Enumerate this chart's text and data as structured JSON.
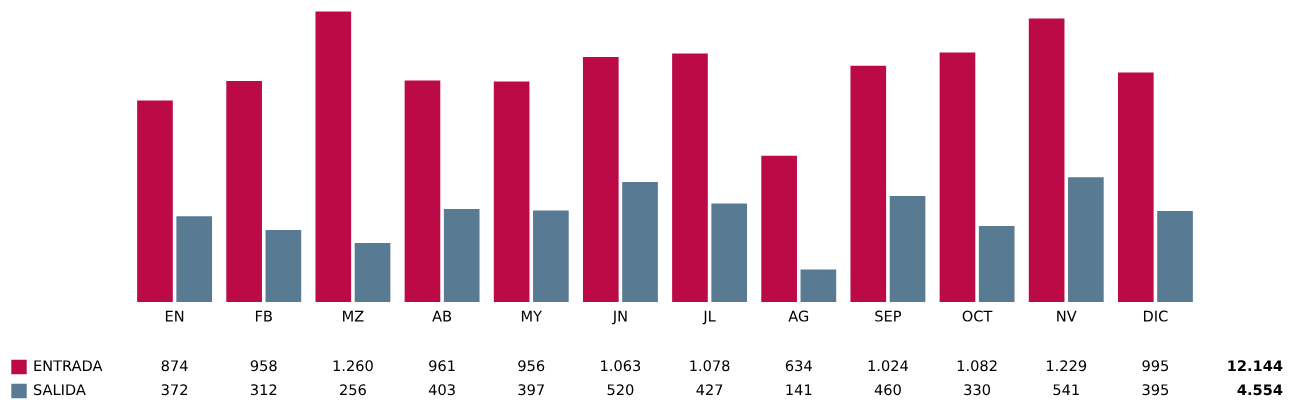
{
  "chart_data": {
    "type": "bar",
    "categories": [
      "EN",
      "FB",
      "MZ",
      "AB",
      "MY",
      "JN",
      "JL",
      "AG",
      "SEP",
      "OCT",
      "NV",
      "DIC"
    ],
    "series": [
      {
        "name": "ENTRADA",
        "color": "#bb0a45",
        "values": [
          874,
          958,
          1260,
          961,
          956,
          1063,
          1078,
          634,
          1024,
          1082,
          1229,
          995
        ],
        "value_labels": [
          "874",
          "958",
          "1.260",
          "961",
          "956",
          "1.063",
          "1.078",
          "634",
          "1.024",
          "1.082",
          "1.229",
          "995"
        ]
      },
      {
        "name": "SALIDA",
        "color": "#587a93",
        "values": [
          372,
          312,
          256,
          403,
          397,
          520,
          427,
          141,
          460,
          330,
          541,
          395
        ],
        "value_labels": [
          "372",
          "312",
          "256",
          "403",
          "397",
          "520",
          "427",
          "141",
          "460",
          "330",
          "541",
          "395"
        ]
      }
    ],
    "annotations": [
      "12.144",
      "4.554"
    ],
    "grid": false,
    "legend": "bottom left"
  }
}
